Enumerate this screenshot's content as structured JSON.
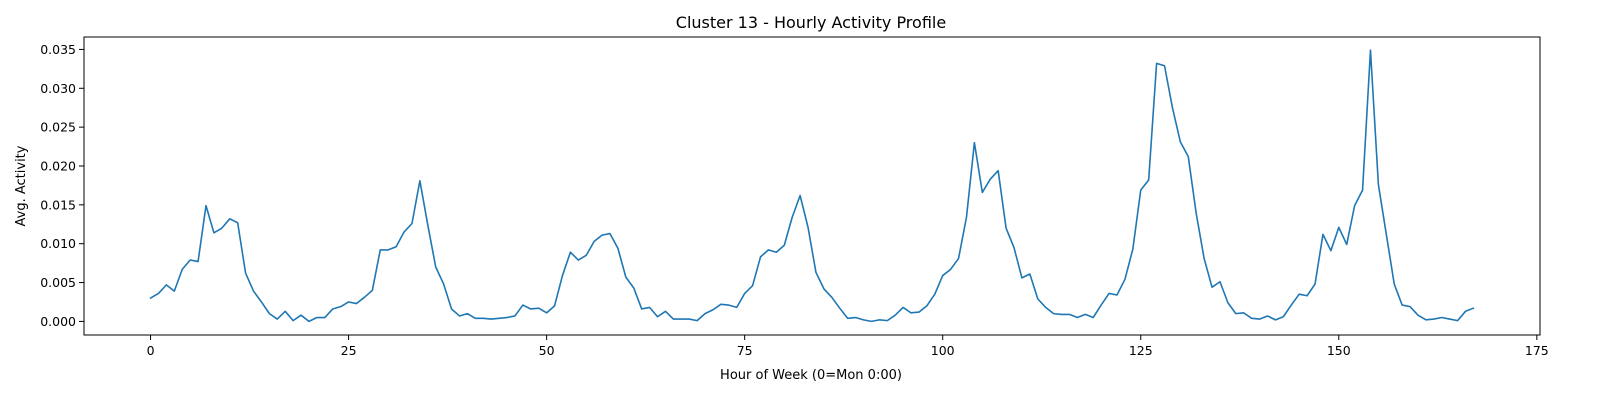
{
  "chart_data": {
    "type": "line",
    "title": "Cluster 13 - Hourly Activity Profile",
    "xlabel": "Hour of Week (0=Mon 0:00)",
    "ylabel": "Avg. Activity",
    "xlim": [
      -8.4,
      175.4
    ],
    "ylim": [
      -0.00175,
      0.0366
    ],
    "xticks": [
      0,
      25,
      50,
      75,
      100,
      125,
      150,
      175
    ],
    "yticks": [
      0.0,
      0.005,
      0.01,
      0.015,
      0.02,
      0.025,
      0.03,
      0.035
    ],
    "ytick_labels": [
      "0.000",
      "0.005",
      "0.010",
      "0.015",
      "0.020",
      "0.025",
      "0.030",
      "0.035"
    ],
    "grid": false,
    "color": "#1f77b4",
    "series": [
      {
        "x": [
          0,
          1,
          2,
          3,
          4,
          5,
          6,
          7,
          8,
          9,
          10,
          11,
          12,
          13,
          14,
          15,
          16,
          17,
          18,
          19,
          20,
          21,
          22,
          23,
          24,
          25,
          26,
          27,
          28,
          29,
          30,
          31,
          32,
          33,
          34,
          35,
          36,
          37,
          38,
          39,
          40,
          41,
          42,
          43,
          44,
          45,
          46,
          47,
          48,
          49,
          50,
          51,
          52,
          53,
          54,
          55,
          56,
          57,
          58,
          59,
          60,
          61,
          62,
          63,
          64,
          65,
          66,
          67,
          68,
          69,
          70,
          71,
          72,
          73,
          74,
          75,
          76,
          77,
          78,
          79,
          80,
          81,
          82,
          83,
          84,
          85,
          86,
          87,
          88,
          89,
          90,
          91,
          92,
          93,
          94,
          95,
          96,
          97,
          98,
          99,
          100,
          101,
          102,
          103,
          104,
          105,
          106,
          107,
          108,
          109,
          110,
          111,
          112,
          113,
          114,
          115,
          116,
          117,
          118,
          119,
          120,
          121,
          122,
          123,
          124,
          125,
          126,
          127,
          128,
          129,
          130,
          131,
          132,
          133,
          134,
          135,
          136,
          137,
          138,
          139,
          140,
          141,
          142,
          143,
          144,
          145,
          146,
          147,
          148,
          149,
          150,
          151,
          152,
          153,
          154,
          155,
          156,
          157,
          158,
          159,
          160,
          161,
          162,
          163,
          164,
          165,
          166,
          167
        ],
        "values": [
          0.003,
          0.0036,
          0.0047,
          0.0039,
          0.0067,
          0.0079,
          0.0077,
          0.0149,
          0.0114,
          0.012,
          0.0132,
          0.0127,
          0.0062,
          0.0039,
          0.0025,
          0.001,
          0.0003,
          0.0013,
          0.0001,
          0.0008,
          0.0,
          0.0005,
          0.0005,
          0.0016,
          0.0019,
          0.0025,
          0.0023,
          0.0031,
          0.004,
          0.0092,
          0.0092,
          0.0096,
          0.0115,
          0.0126,
          0.0181,
          0.0124,
          0.007,
          0.0048,
          0.0016,
          0.0007,
          0.001,
          0.0004,
          0.0004,
          0.0003,
          0.0004,
          0.0005,
          0.0007,
          0.0021,
          0.0016,
          0.0017,
          0.0011,
          0.002,
          0.0059,
          0.0089,
          0.0079,
          0.0085,
          0.0103,
          0.0111,
          0.0113,
          0.0094,
          0.0057,
          0.0043,
          0.0016,
          0.0018,
          0.0006,
          0.0013,
          0.0003,
          0.0003,
          0.0003,
          0.0001,
          0.001,
          0.0015,
          0.0022,
          0.0021,
          0.0018,
          0.0036,
          0.0046,
          0.0083,
          0.0092,
          0.0089,
          0.0098,
          0.0134,
          0.0162,
          0.0121,
          0.0063,
          0.0042,
          0.0031,
          0.0017,
          0.0004,
          0.0005,
          0.0002,
          0.0,
          0.0002,
          0.0001,
          0.0008,
          0.0018,
          0.0011,
          0.0012,
          0.002,
          0.0035,
          0.0059,
          0.0067,
          0.0081,
          0.0134,
          0.023,
          0.0166,
          0.0183,
          0.0194,
          0.012,
          0.0095,
          0.0056,
          0.0061,
          0.0029,
          0.0018,
          0.001,
          0.0009,
          0.0009,
          0.0005,
          0.0009,
          0.0005,
          0.0021,
          0.0036,
          0.0034,
          0.0054,
          0.0093,
          0.0169,
          0.0182,
          0.0332,
          0.0329,
          0.0275,
          0.0231,
          0.0212,
          0.0139,
          0.0081,
          0.0044,
          0.0051,
          0.0024,
          0.001,
          0.0011,
          0.0004,
          0.0003,
          0.0007,
          0.0002,
          0.0006,
          0.0021,
          0.0035,
          0.0033,
          0.0048,
          0.0112,
          0.0091,
          0.0121,
          0.0099,
          0.0149,
          0.0169,
          0.0349,
          0.0176,
          0.0112,
          0.0048,
          0.0021,
          0.0019,
          0.0008,
          0.0002,
          0.0003,
          0.0005,
          0.0003,
          0.0001,
          0.0013,
          0.0017
        ]
      }
    ]
  }
}
